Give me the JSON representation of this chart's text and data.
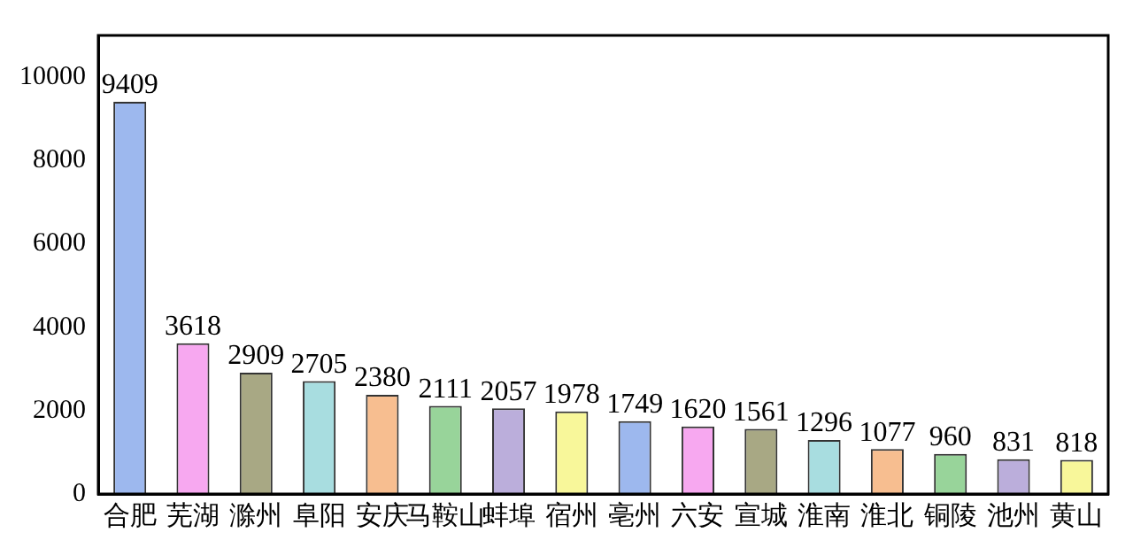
{
  "chart_data": {
    "type": "bar",
    "categories": [
      "合肥",
      "芜湖",
      "滁州",
      "阜阳",
      "安庆",
      "马鞍山",
      "蚌埠",
      "宿州",
      "亳州",
      "六安",
      "宣城",
      "淮南",
      "淮北",
      "铜陵",
      "池州",
      "黄山"
    ],
    "values": [
      9409,
      3618,
      2909,
      2705,
      2380,
      2111,
      2057,
      1978,
      1749,
      1620,
      1561,
      1296,
      1077,
      960,
      831,
      818
    ],
    "colors": [
      "#9db8ee",
      "#f7a8f0",
      "#a8a884",
      "#a8dde0",
      "#f7be90",
      "#98d49a",
      "#bbaedb",
      "#f8f79a",
      "#9db8ee",
      "#f7a8f0",
      "#a8a884",
      "#a8dde0",
      "#f7be90",
      "#98d49a",
      "#bbaedb",
      "#f8f79a"
    ],
    "ylim": [
      0,
      11000
    ],
    "yticks": [
      0,
      2000,
      4000,
      6000,
      8000,
      10000
    ],
    "grid": false,
    "data_labels": true
  }
}
